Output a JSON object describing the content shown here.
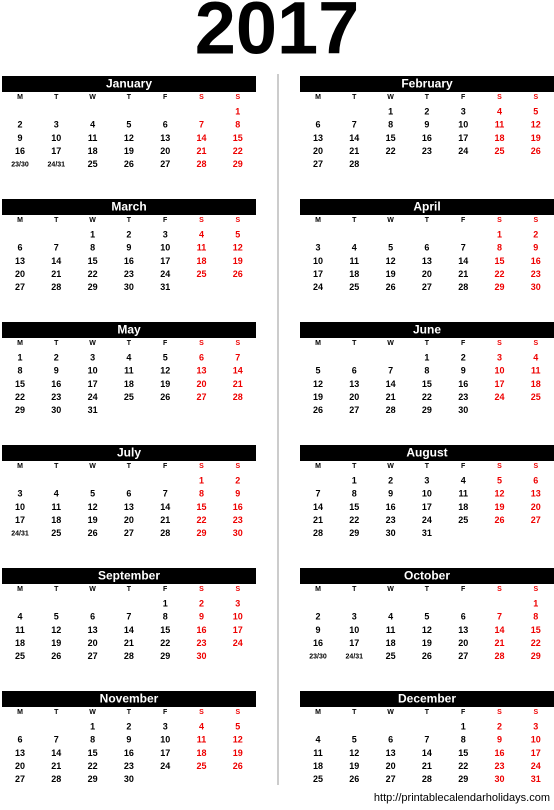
{
  "title": "2017",
  "weekdays": [
    "M",
    "T",
    "W",
    "T",
    "F",
    "S",
    "S"
  ],
  "months": [
    {
      "name": "January",
      "weeks": [
        [
          null,
          null,
          null,
          null,
          null,
          null,
          1
        ],
        [
          2,
          3,
          4,
          5,
          6,
          7,
          8
        ],
        [
          9,
          10,
          11,
          12,
          13,
          14,
          15
        ],
        [
          16,
          17,
          18,
          19,
          20,
          21,
          22
        ],
        [
          "23/30",
          "24/31",
          25,
          26,
          27,
          28,
          29
        ]
      ]
    },
    {
      "name": "February",
      "weeks": [
        [
          null,
          null,
          1,
          2,
          3,
          4,
          5
        ],
        [
          6,
          7,
          8,
          9,
          10,
          11,
          12
        ],
        [
          13,
          14,
          15,
          16,
          17,
          18,
          19
        ],
        [
          20,
          21,
          22,
          23,
          24,
          25,
          26
        ],
        [
          27,
          28,
          null,
          null,
          null,
          null,
          null
        ]
      ]
    },
    {
      "name": "March",
      "weeks": [
        [
          null,
          null,
          1,
          2,
          3,
          4,
          5
        ],
        [
          6,
          7,
          8,
          9,
          10,
          11,
          12
        ],
        [
          13,
          14,
          15,
          16,
          17,
          18,
          19
        ],
        [
          20,
          21,
          22,
          23,
          24,
          25,
          26
        ],
        [
          27,
          28,
          29,
          30,
          31,
          null,
          null
        ]
      ]
    },
    {
      "name": "April",
      "weeks": [
        [
          null,
          null,
          null,
          null,
          null,
          1,
          2
        ],
        [
          3,
          4,
          5,
          6,
          7,
          8,
          9
        ],
        [
          10,
          11,
          12,
          13,
          14,
          15,
          16
        ],
        [
          17,
          18,
          19,
          20,
          21,
          22,
          23
        ],
        [
          24,
          25,
          26,
          27,
          28,
          29,
          30
        ]
      ]
    },
    {
      "name": "May",
      "weeks": [
        [
          1,
          2,
          3,
          4,
          5,
          6,
          7
        ],
        [
          8,
          9,
          10,
          11,
          12,
          13,
          14
        ],
        [
          15,
          16,
          17,
          18,
          19,
          20,
          21
        ],
        [
          22,
          23,
          24,
          25,
          26,
          27,
          28
        ],
        [
          29,
          30,
          31,
          null,
          null,
          null,
          null
        ]
      ]
    },
    {
      "name": "June",
      "weeks": [
        [
          null,
          null,
          null,
          1,
          2,
          3,
          4
        ],
        [
          5,
          6,
          7,
          8,
          9,
          10,
          11
        ],
        [
          12,
          13,
          14,
          15,
          16,
          17,
          18
        ],
        [
          19,
          20,
          21,
          22,
          23,
          24,
          25
        ],
        [
          26,
          27,
          28,
          29,
          30,
          null,
          null
        ]
      ]
    },
    {
      "name": "July",
      "weeks": [
        [
          null,
          null,
          null,
          null,
          null,
          1,
          2
        ],
        [
          3,
          4,
          5,
          6,
          7,
          8,
          9
        ],
        [
          10,
          11,
          12,
          13,
          14,
          15,
          16
        ],
        [
          17,
          18,
          19,
          20,
          21,
          22,
          23
        ],
        [
          "24/31",
          25,
          26,
          27,
          28,
          29,
          30
        ]
      ]
    },
    {
      "name": "August",
      "weeks": [
        [
          null,
          1,
          2,
          3,
          4,
          5,
          6
        ],
        [
          7,
          8,
          9,
          10,
          11,
          12,
          13
        ],
        [
          14,
          15,
          16,
          17,
          18,
          19,
          20
        ],
        [
          21,
          22,
          23,
          24,
          25,
          26,
          27
        ],
        [
          28,
          29,
          30,
          31,
          null,
          null,
          null
        ]
      ]
    },
    {
      "name": "September",
      "weeks": [
        [
          null,
          null,
          null,
          null,
          1,
          2,
          3
        ],
        [
          4,
          5,
          6,
          7,
          8,
          9,
          10
        ],
        [
          11,
          12,
          13,
          14,
          15,
          16,
          17
        ],
        [
          18,
          19,
          20,
          21,
          22,
          23,
          24
        ],
        [
          25,
          26,
          27,
          28,
          29,
          30,
          null
        ]
      ]
    },
    {
      "name": "October",
      "weeks": [
        [
          null,
          null,
          null,
          null,
          null,
          null,
          1
        ],
        [
          2,
          3,
          4,
          5,
          6,
          7,
          8
        ],
        [
          9,
          10,
          11,
          12,
          13,
          14,
          15
        ],
        [
          16,
          17,
          18,
          19,
          20,
          21,
          22
        ],
        [
          "23/30",
          "24/31",
          25,
          26,
          27,
          28,
          29
        ]
      ]
    },
    {
      "name": "November",
      "weeks": [
        [
          null,
          null,
          1,
          2,
          3,
          4,
          5
        ],
        [
          6,
          7,
          8,
          9,
          10,
          11,
          12
        ],
        [
          13,
          14,
          15,
          16,
          17,
          18,
          19
        ],
        [
          20,
          21,
          22,
          23,
          24,
          25,
          26
        ],
        [
          27,
          28,
          29,
          30,
          null,
          null,
          null
        ]
      ]
    },
    {
      "name": "December",
      "weeks": [
        [
          null,
          null,
          null,
          null,
          1,
          2,
          3
        ],
        [
          4,
          5,
          6,
          7,
          8,
          9,
          10
        ],
        [
          11,
          12,
          13,
          14,
          15,
          16,
          17
        ],
        [
          18,
          19,
          20,
          21,
          22,
          23,
          24
        ],
        [
          25,
          26,
          27,
          28,
          29,
          30,
          31
        ]
      ]
    }
  ],
  "footer": "http://printablecalendarholidays.com"
}
